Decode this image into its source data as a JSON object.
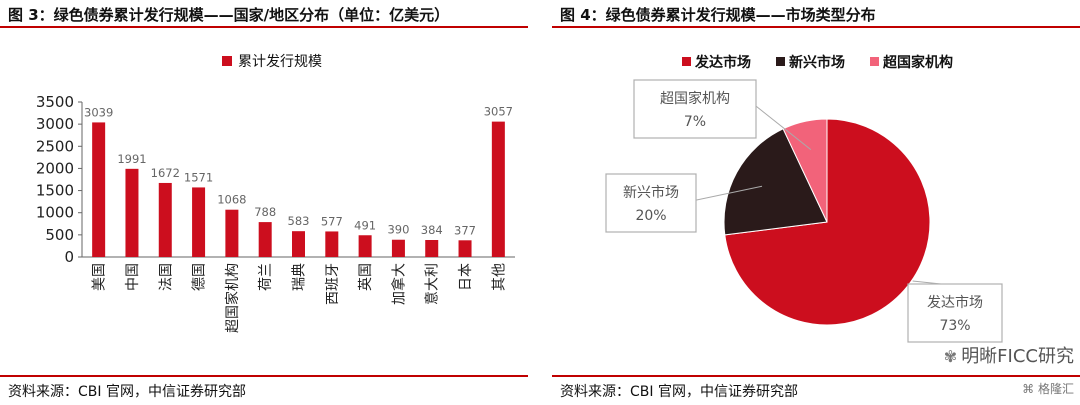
{
  "figures": [
    {
      "title": "图 3：绿色债券累计发行规模——国家/地区分布（单位：亿美元）",
      "source": "资料来源：CBI 官网，中信证券研究部"
    },
    {
      "title": "图 4：绿色债券累计发行规模——市场类型分布",
      "source": "资料来源：CBI 官网，中信证券研究部"
    }
  ],
  "watermark": {
    "text": "明晰FICC研究",
    "icon": "wechat-icon",
    "logo_text": "格隆汇"
  },
  "colors": {
    "red": "#cc0e1e",
    "dark": "#2a1a1a",
    "pink": "#f2637a",
    "rule": "#c00000"
  },
  "chart_data": [
    {
      "type": "bar",
      "title": "图 3：绿色债券累计发行规模——国家/地区分布（单位：亿美元）",
      "categories": [
        "美国",
        "中国",
        "法国",
        "德国",
        "超国家机构",
        "荷兰",
        "瑞典",
        "西班牙",
        "英国",
        "加拿大",
        "意大利",
        "日本",
        "其他"
      ],
      "series": [
        {
          "name": "累计发行规模",
          "values": [
            3039,
            1991,
            1672,
            1571,
            1068,
            788,
            583,
            577,
            491,
            390,
            384,
            377,
            3057
          ]
        }
      ],
      "ylim": [
        0,
        3500
      ],
      "yticks": [
        0,
        500,
        1000,
        1500,
        2000,
        2500,
        3000,
        3500
      ],
      "legend": "top-center",
      "grid": false
    },
    {
      "type": "pie",
      "title": "图 4：绿色债券累计发行规模——市场类型分布",
      "labels": [
        "发达市场",
        "新兴市场",
        "超国家机构"
      ],
      "values": [
        73,
        20,
        7
      ],
      "value_labels": [
        "73%",
        "20%",
        "7%"
      ],
      "legend": "top-left"
    }
  ]
}
